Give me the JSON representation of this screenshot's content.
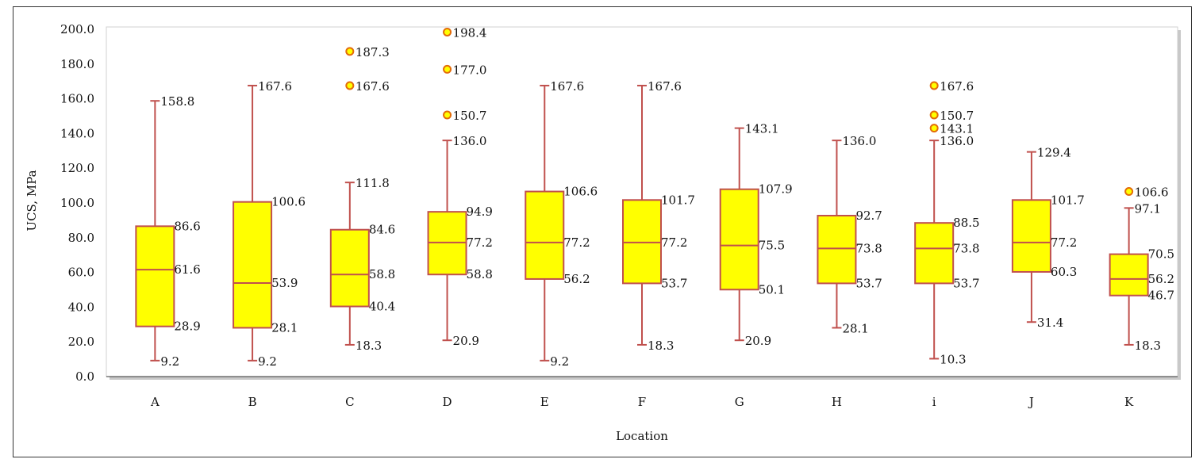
{
  "chart_data": {
    "type": "box",
    "xlabel": "Location",
    "ylabel": "UCS, MPa",
    "ylim": [
      0,
      200
    ],
    "yticks": [
      "0.0",
      "20.0",
      "40.0",
      "60.0",
      "80.0",
      "100.0",
      "120.0",
      "140.0",
      "160.0",
      "180.0",
      "200.0"
    ],
    "categories": [
      "A",
      "B",
      "C",
      "D",
      "E",
      "F",
      "G",
      "H",
      "i",
      "J",
      "K"
    ],
    "boxes": [
      {
        "category": "A",
        "min": 9.2,
        "q1": 28.9,
        "median": 61.6,
        "q3": 86.6,
        "max": 158.8,
        "outliers": []
      },
      {
        "category": "B",
        "min": 9.2,
        "q1": 28.1,
        "median": 53.9,
        "q3": 100.6,
        "max": 167.6,
        "outliers": []
      },
      {
        "category": "C",
        "min": 18.3,
        "q1": 40.4,
        "median": 58.8,
        "q3": 84.6,
        "max": 111.8,
        "outliers": [
          167.6,
          187.3
        ]
      },
      {
        "category": "D",
        "min": 20.9,
        "q1": 58.8,
        "median": 77.2,
        "q3": 94.9,
        "max": 136.0,
        "outliers": [
          150.7,
          177.0,
          198.4
        ]
      },
      {
        "category": "E",
        "min": 9.2,
        "q1": 56.2,
        "median": 77.2,
        "q3": 106.6,
        "max": 167.6,
        "outliers": []
      },
      {
        "category": "F",
        "min": 18.3,
        "q1": 53.7,
        "median": 77.2,
        "q3": 101.7,
        "max": 167.6,
        "outliers": []
      },
      {
        "category": "G",
        "min": 20.9,
        "q1": 50.1,
        "median": 75.5,
        "q3": 107.9,
        "max": 143.1,
        "outliers": []
      },
      {
        "category": "H",
        "min": 28.1,
        "q1": 53.7,
        "median": 73.8,
        "q3": 92.7,
        "max": 136.0,
        "outliers": []
      },
      {
        "category": "i",
        "min": 10.3,
        "q1": 53.7,
        "median": 73.8,
        "q3": 88.5,
        "max": 136.0,
        "outliers": [
          143.1,
          150.7,
          167.6
        ]
      },
      {
        "category": "J",
        "min": 31.4,
        "q1": 60.3,
        "median": 77.2,
        "q3": 101.7,
        "max": 129.4,
        "outliers": []
      },
      {
        "category": "K",
        "min": 18.3,
        "q1": 46.7,
        "median": 56.2,
        "q3": 70.5,
        "max": 97.1,
        "outliers": [
          106.6
        ]
      }
    ],
    "grid": false,
    "legend": "none",
    "colors": {
      "box_fill": "#ffff00",
      "box_stroke": "#c0504d",
      "outlier_fill": "#ffff00",
      "outlier_stroke": "#e36c09",
      "plot_border": "#bfbfbf"
    }
  }
}
